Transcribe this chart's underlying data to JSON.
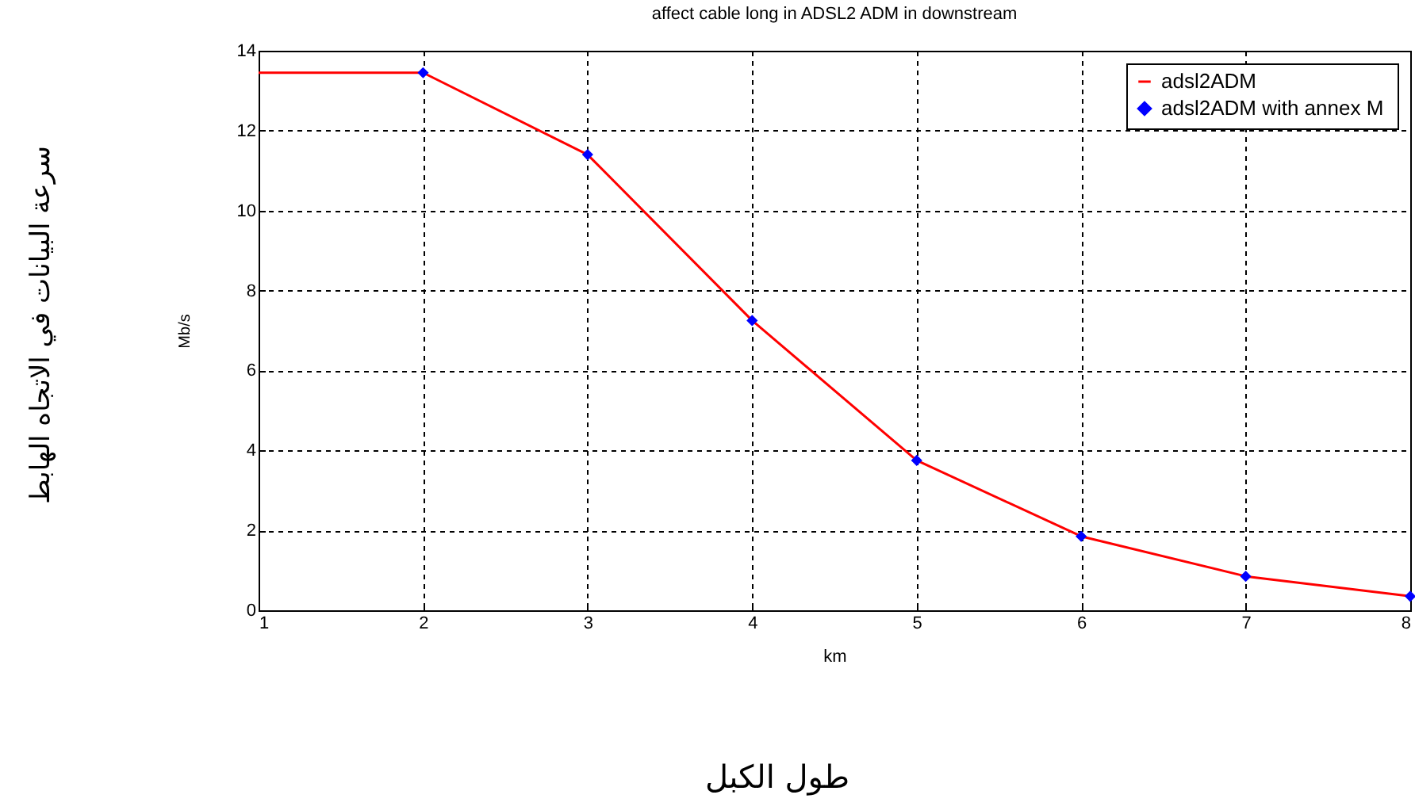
{
  "chart_data": {
    "type": "line",
    "title": "affect cable long in ADSL2 ADM  in downstream",
    "xlabel": "km",
    "ylabel": "Mb/s",
    "annotations": [
      "سرعة البيانات في الاتجاه الهابط",
      "طول الكبل"
    ],
    "xlim": [
      1,
      8
    ],
    "xticks": [
      1,
      2,
      3,
      4,
      5,
      6,
      7,
      8
    ],
    "ylim": [
      0,
      14
    ],
    "yticks": [
      0,
      2,
      4,
      6,
      8,
      10,
      12,
      14
    ],
    "grid": true,
    "legend": "top right",
    "series": [
      {
        "name": "adsl2ADM",
        "type": "line",
        "color": "#ff0000",
        "marker": "none",
        "x": [
          1,
          2,
          3,
          4,
          5,
          6,
          7,
          8
        ],
        "values": [
          13.45,
          13.45,
          11.4,
          7.25,
          3.75,
          1.85,
          0.85,
          0.35
        ]
      },
      {
        "name": "adsl2ADM  with annex M",
        "type": "scatter",
        "color": "#0000ff",
        "marker": "diamond",
        "x": [
          2,
          3,
          4,
          5,
          6,
          7,
          8
        ],
        "values": [
          13.45,
          11.4,
          7.25,
          3.75,
          1.85,
          0.85,
          0.35
        ]
      }
    ]
  }
}
